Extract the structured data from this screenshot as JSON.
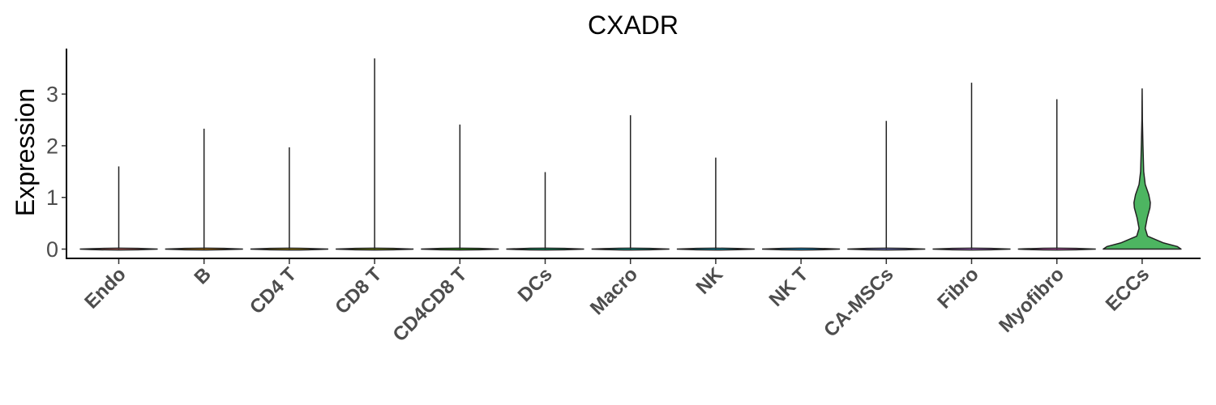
{
  "chart_data": {
    "type": "violin",
    "title": "CXADR",
    "xlabel": "",
    "ylabel": "Expression",
    "ylim": [
      -0.18,
      3.88
    ],
    "yticks": [
      0,
      1,
      2,
      3
    ],
    "grid": false,
    "legend": "none",
    "categories": [
      "Endo",
      "B",
      "CD4 T",
      "CD8 T",
      "CD4CD8 T",
      "DCs",
      "Macro",
      "NK",
      "NK T",
      "CA-MSCs",
      "Fibro",
      "Myofibro",
      "ECCs"
    ],
    "series": [
      {
        "values": [
          1.6,
          2.33,
          1.97,
          3.69,
          2.41,
          1.49,
          2.59,
          1.77,
          0.0,
          2.48,
          3.22,
          2.9,
          3.1
        ]
      }
    ],
    "fill_colors": [
      "#F8766D",
      "#E18A00",
      "#BE9C00",
      "#8CAB00",
      "#24B700",
      "#00BE70",
      "#00C1AB",
      "#00BBDA",
      "#00ACFC",
      "#8B93FF",
      "#D575FE",
      "#F962DD",
      "#4DB561"
    ],
    "highlight_category": "ECCs",
    "highlight_density_profile": [
      [
        0.0,
        1.0
      ],
      [
        0.05,
        0.9
      ],
      [
        0.12,
        0.55
      ],
      [
        0.25,
        0.14
      ],
      [
        0.4,
        0.08
      ],
      [
        0.6,
        0.13
      ],
      [
        0.8,
        0.2
      ],
      [
        0.9,
        0.21
      ],
      [
        1.05,
        0.17
      ],
      [
        1.25,
        0.08
      ],
      [
        1.5,
        0.04
      ],
      [
        2.0,
        0.02
      ],
      [
        2.5,
        0.006
      ],
      [
        3.1,
        0.0
      ]
    ]
  }
}
